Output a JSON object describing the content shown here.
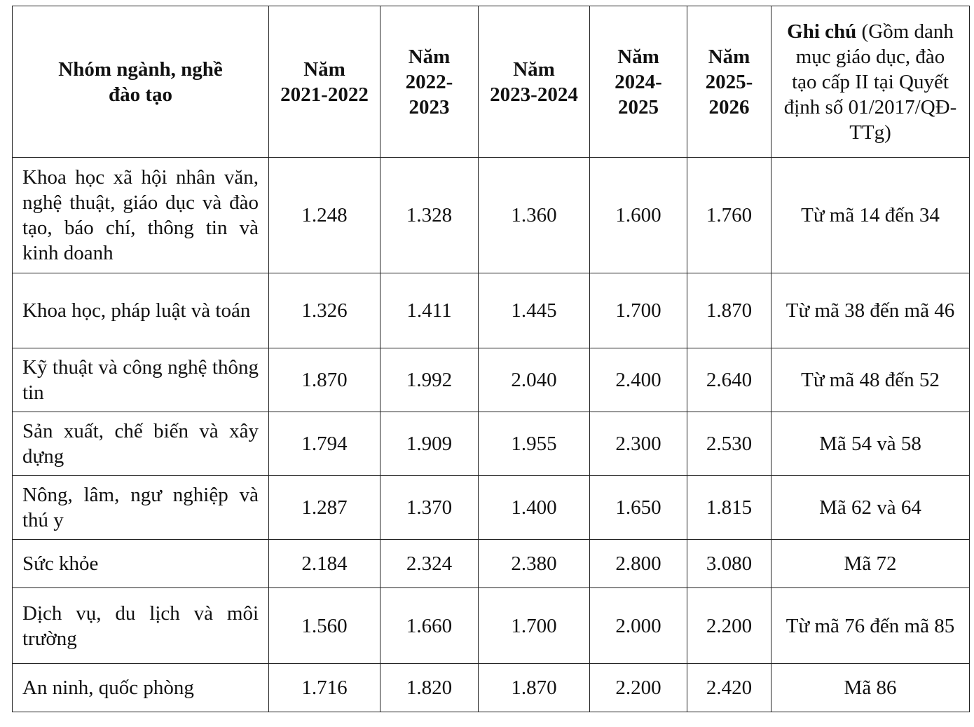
{
  "table": {
    "headers": {
      "group": "Nhóm ngành, nghề đào tạo",
      "years": [
        "Năm 2021-2022",
        "Năm 2022-2023",
        "Năm 2023-2024",
        "Năm 2024-2025",
        "Năm 2025-2026"
      ],
      "note_bold": "Ghi chú",
      "note_rest": " (Gồm danh mục giáo dục, đào tạo cấp II tại Quyết định số 01/2017/QĐ-TTg)"
    },
    "rows": [
      {
        "name": "Khoa học xã hội nhân văn, nghệ thuật, giáo dục và đào tạo, báo chí, thông tin và kinh doanh",
        "values": [
          "1.248",
          "1.328",
          "1.360",
          "1.600",
          "1.760"
        ],
        "note": "Từ mã 14 đến 34"
      },
      {
        "name": "Khoa học, pháp luật và toán",
        "values": [
          "1.326",
          "1.411",
          "1.445",
          "1.700",
          "1.870"
        ],
        "note": "Từ mã 38 đến mã 46"
      },
      {
        "name": "Kỹ thuật và công nghệ thông tin",
        "values": [
          "1.870",
          "1.992",
          "2.040",
          "2.400",
          "2.640"
        ],
        "note": "Từ mã 48 đến 52"
      },
      {
        "name": "Sản xuất, chế biến và xây dựng",
        "values": [
          "1.794",
          "1.909",
          "1.955",
          "2.300",
          "2.530"
        ],
        "note": "Mã 54 và 58"
      },
      {
        "name": "Nông, lâm, ngư nghiệp và thú y",
        "values": [
          "1.287",
          "1.370",
          "1.400",
          "1.650",
          "1.815"
        ],
        "note": "Mã 62 và 64"
      },
      {
        "name": "Sức khỏe",
        "values": [
          "2.184",
          "2.324",
          "2.380",
          "2.800",
          "3.080"
        ],
        "note": "Mã 72"
      },
      {
        "name": "Dịch vụ, du lịch và môi trường",
        "values": [
          "1.560",
          "1.660",
          "1.700",
          "2.000",
          "2.200"
        ],
        "note": "Từ mã 76 đến mã 85"
      },
      {
        "name": "An ninh, quốc phòng",
        "values": [
          "1.716",
          "1.820",
          "1.870",
          "2.200",
          "2.420"
        ],
        "note": "Mã 86"
      }
    ]
  }
}
